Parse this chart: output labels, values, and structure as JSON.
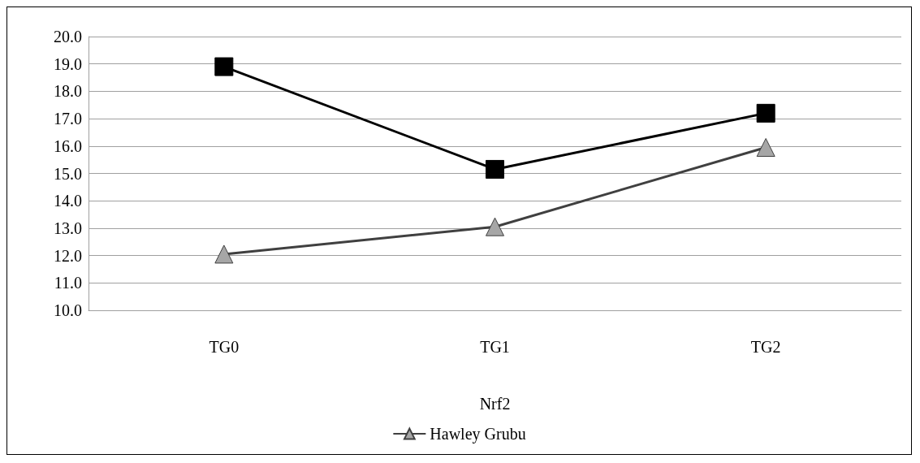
{
  "chart_data": {
    "type": "line",
    "xlabel": "Nrf2",
    "categories": [
      "TG0",
      "TG1",
      "TG2"
    ],
    "series": [
      {
        "name": "Hawley Grubu",
        "color": "#404040",
        "marker": "triangle",
        "values": [
          12.05,
          13.05,
          15.95
        ]
      },
      {
        "color": "#000000",
        "marker": "square",
        "values": [
          18.9,
          15.15,
          17.2
        ]
      }
    ],
    "ylim": [
      10,
      20
    ],
    "yticks": [
      {
        "value": 10,
        "label": "10.0"
      },
      {
        "value": 11,
        "label": "11.0"
      },
      {
        "value": 12,
        "label": "12.0"
      },
      {
        "value": 13,
        "label": "13.0"
      },
      {
        "value": 14,
        "label": "14.0"
      },
      {
        "value": 15,
        "label": "15.0"
      },
      {
        "value": 16,
        "label": "16.0"
      },
      {
        "value": 17,
        "label": "17.0"
      },
      {
        "value": 18,
        "label": "18.0"
      },
      {
        "value": 19,
        "label": "19.0"
      },
      {
        "value": 20,
        "label": "20.0"
      }
    ],
    "grid": "y",
    "legend": "bottom"
  }
}
